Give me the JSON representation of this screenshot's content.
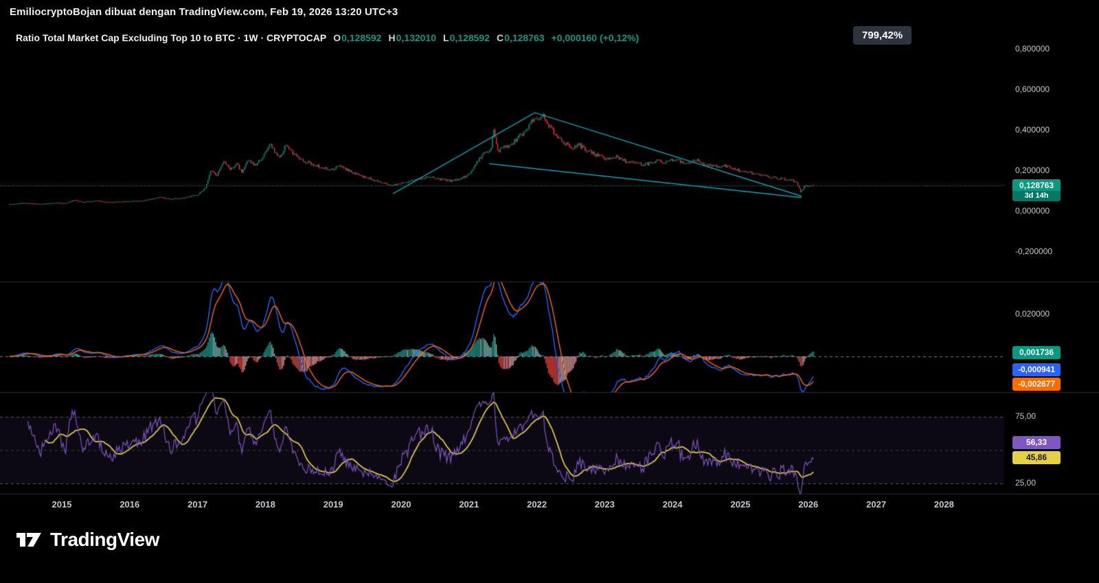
{
  "attribution": {
    "text": "EmiliocryptoBojan dibuat dengan TradingView.com, Feb 19, 2026 13:20 UTC+3"
  },
  "header": {
    "symbol_title": "Ratio Total Market Cap Excluding Top 10 to BTC · 1W · CRYPTOCAP",
    "ohlc": {
      "items": [
        {
          "label": "O",
          "value": "0,128592"
        },
        {
          "label": "H",
          "value": "0,132010"
        },
        {
          "label": "L",
          "value": "0,128592"
        },
        {
          "label": "C",
          "value": "0,128763"
        }
      ],
      "change": "+0,000160 (+0,12%)"
    },
    "percent_badge": "799,42%"
  },
  "price_scale": {
    "badge": {
      "price": "0,128763",
      "countdown": "3d 14h"
    }
  },
  "macd_panel": {
    "scale_label": {
      "text": "0,020000",
      "value": 0.02
    },
    "badges": [
      {
        "text": "0,001736",
        "color": "#089981",
        "text_color": "#ffffff"
      },
      {
        "text": "-0,000941",
        "color": "#2962ff",
        "text_color": "#ffffff"
      },
      {
        "text": "-0,002677",
        "color": "#ff6d00",
        "text_color": "#ffffff"
      }
    ]
  },
  "rsi_panel": {
    "levels": [
      {
        "text": "75,00",
        "value": 75
      },
      {
        "value": 50
      },
      {
        "text": "25,00",
        "value": 25
      }
    ],
    "badges": [
      {
        "text": "56,33",
        "color": "#7e57c2",
        "text_color": "#ffffff"
      },
      {
        "text": "45,86",
        "color": "#e5cf45",
        "text_color": "#15192a"
      }
    ]
  },
  "logo": {
    "text": "TradingView"
  },
  "colors": {
    "up": "#089981",
    "down": "#f23645",
    "trendline": "#00c2d4",
    "macd_line": "#2962ff",
    "signal_line": "#ff6d00",
    "hist_pos": "#26a69a",
    "hist_pos_weak": "#8fd1c9",
    "hist_neg": "#ef5350",
    "hist_neg_weak": "#f3b0b4",
    "rsi": "#7e57c2",
    "rsi_ma": "#e5cf45",
    "axis_text": "#c4c7ce",
    "divider": "#2a2e39",
    "zero_line": "#7d818c",
    "level_line": "#555963",
    "band": "rgba(126,87,194,0.10)",
    "pct_badge_bg": "#2f333e"
  },
  "chart_data": {
    "type": "candlestick",
    "title": "Ratio Total Market Cap Excluding Top 10 to BTC",
    "interval": "1W",
    "source": "CRYPTOCAP",
    "last_close": 0.128763,
    "x_axis": {
      "years": [
        {
          "label": "2015",
          "value": 2015
        },
        {
          "label": "2016",
          "value": 2016
        },
        {
          "label": "2017",
          "value": 2017
        },
        {
          "label": "2018",
          "value": 2018
        },
        {
          "label": "2019",
          "value": 2019
        },
        {
          "label": "2020",
          "value": 2020
        },
        {
          "label": "2021",
          "value": 2021
        },
        {
          "label": "2022",
          "value": 2022
        },
        {
          "label": "2023",
          "value": 2023
        },
        {
          "label": "2024",
          "value": 2024
        },
        {
          "label": "2025",
          "value": 2025
        },
        {
          "label": "2026",
          "value": 2026
        },
        {
          "label": "2027",
          "value": 2027
        },
        {
          "label": "2028",
          "value": 2028
        }
      ]
    },
    "y_axis": {
      "ticks": [
        {
          "text": "0,800000",
          "value": 0.8
        },
        {
          "text": "0,600000",
          "value": 0.6
        },
        {
          "text": "0,400000",
          "value": 0.4
        },
        {
          "text": "0,200000",
          "value": 0.2
        },
        {
          "text": "0,000000",
          "value": 0.0
        },
        {
          "text": "-0,200000",
          "value": -0.2
        }
      ],
      "current_price": 0.128763
    },
    "price_keypoints": [
      [
        2014.23,
        0.036
      ],
      [
        2014.45,
        0.042
      ],
      [
        2014.7,
        0.037
      ],
      [
        2014.9,
        0.043
      ],
      [
        2015.05,
        0.04
      ],
      [
        2015.18,
        0.056
      ],
      [
        2015.3,
        0.047
      ],
      [
        2015.5,
        0.053
      ],
      [
        2015.7,
        0.046
      ],
      [
        2015.95,
        0.05
      ],
      [
        2016.2,
        0.053
      ],
      [
        2016.45,
        0.071
      ],
      [
        2016.6,
        0.062
      ],
      [
        2016.8,
        0.068
      ],
      [
        2017.0,
        0.082
      ],
      [
        2017.12,
        0.118
      ],
      [
        2017.2,
        0.205
      ],
      [
        2017.28,
        0.172
      ],
      [
        2017.38,
        0.248
      ],
      [
        2017.48,
        0.21
      ],
      [
        2017.58,
        0.232
      ],
      [
        2017.65,
        0.196
      ],
      [
        2017.75,
        0.252
      ],
      [
        2017.85,
        0.228
      ],
      [
        2017.97,
        0.272
      ],
      [
        2018.06,
        0.33
      ],
      [
        2018.14,
        0.296
      ],
      [
        2018.22,
        0.272
      ],
      [
        2018.3,
        0.328
      ],
      [
        2018.4,
        0.292
      ],
      [
        2018.52,
        0.252
      ],
      [
        2018.66,
        0.238
      ],
      [
        2018.82,
        0.218
      ],
      [
        2018.96,
        0.204
      ],
      [
        2019.1,
        0.224
      ],
      [
        2019.26,
        0.198
      ],
      [
        2019.42,
        0.174
      ],
      [
        2019.56,
        0.16
      ],
      [
        2019.72,
        0.14
      ],
      [
        2019.86,
        0.127
      ],
      [
        2020.0,
        0.139
      ],
      [
        2020.16,
        0.152
      ],
      [
        2020.32,
        0.166
      ],
      [
        2020.46,
        0.172
      ],
      [
        2020.6,
        0.157
      ],
      [
        2020.76,
        0.15
      ],
      [
        2020.9,
        0.166
      ],
      [
        2021.02,
        0.188
      ],
      [
        2021.12,
        0.242
      ],
      [
        2021.22,
        0.292
      ],
      [
        2021.32,
        0.305
      ],
      [
        2021.36,
        0.4
      ],
      [
        2021.42,
        0.298
      ],
      [
        2021.5,
        0.312
      ],
      [
        2021.6,
        0.33
      ],
      [
        2021.7,
        0.352
      ],
      [
        2021.8,
        0.39
      ],
      [
        2021.9,
        0.43
      ],
      [
        2021.97,
        0.47
      ],
      [
        2022.04,
        0.452
      ],
      [
        2022.1,
        0.468
      ],
      [
        2022.18,
        0.425
      ],
      [
        2022.3,
        0.372
      ],
      [
        2022.42,
        0.338
      ],
      [
        2022.52,
        0.31
      ],
      [
        2022.62,
        0.33
      ],
      [
        2022.74,
        0.3
      ],
      [
        2022.88,
        0.278
      ],
      [
        2023.0,
        0.262
      ],
      [
        2023.16,
        0.272
      ],
      [
        2023.3,
        0.249
      ],
      [
        2023.46,
        0.237
      ],
      [
        2023.6,
        0.231
      ],
      [
        2023.76,
        0.252
      ],
      [
        2023.9,
        0.245
      ],
      [
        2024.04,
        0.257
      ],
      [
        2024.2,
        0.239
      ],
      [
        2024.36,
        0.251
      ],
      [
        2024.5,
        0.229
      ],
      [
        2024.66,
        0.221
      ],
      [
        2024.8,
        0.226
      ],
      [
        2024.96,
        0.204
      ],
      [
        2025.1,
        0.194
      ],
      [
        2025.26,
        0.184
      ],
      [
        2025.4,
        0.171
      ],
      [
        2025.56,
        0.163
      ],
      [
        2025.7,
        0.157
      ],
      [
        2025.82,
        0.148
      ],
      [
        2025.89,
        0.095
      ],
      [
        2025.94,
        0.124
      ],
      [
        2026.02,
        0.127
      ],
      [
        2026.08,
        0.1288
      ]
    ],
    "drawings": [
      {
        "type": "trendline",
        "points": [
          [
            2019.88,
            0.088
          ],
          [
            2021.97,
            0.488
          ]
        ]
      },
      {
        "type": "trendline",
        "points": [
          [
            2021.97,
            0.488
          ],
          [
            2025.9,
            0.076
          ]
        ]
      },
      {
        "type": "trendline",
        "points": [
          [
            2021.3,
            0.236
          ],
          [
            2025.9,
            0.069
          ]
        ]
      }
    ],
    "indicators": {
      "macd": {
        "fast": 12,
        "slow": 26,
        "signal": 9,
        "scale_tick": 0.02,
        "current": {
          "histogram": 0.001736,
          "macd": -0.000941,
          "signal": -0.002677
        }
      },
      "rsi": {
        "length": 14,
        "ma_length": 14,
        "levels": [
          75,
          50,
          25
        ],
        "current": {
          "rsi": 56.33,
          "ma": 45.86
        }
      }
    }
  }
}
